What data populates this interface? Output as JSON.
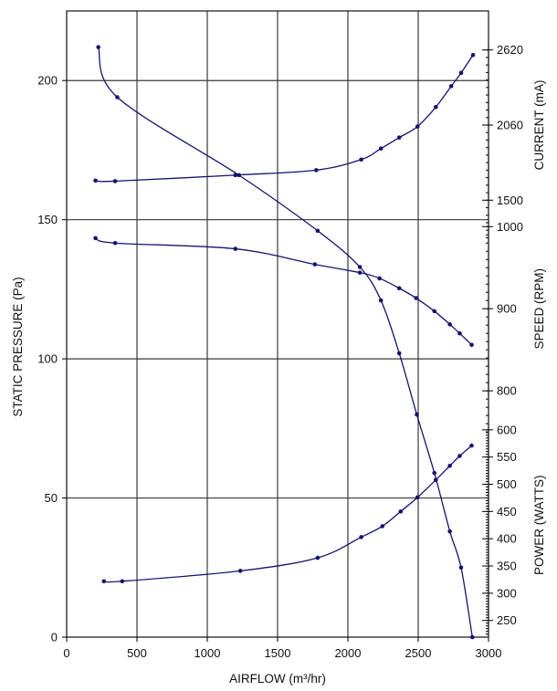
{
  "chart_data": {
    "type": "line",
    "xlabel": "AIRFLOW (m³/hr)",
    "ylabel": "STATIC PRESSURE (Pa)",
    "xlim": [
      0,
      3000
    ],
    "ylim": [
      0,
      225
    ],
    "x_ticks": [
      0,
      500,
      1000,
      1500,
      2000,
      2500,
      3000
    ],
    "y_ticks": [
      0,
      50,
      100,
      150,
      200
    ],
    "grid": true,
    "line_color": "#14146e",
    "right_axes": [
      {
        "key": "current",
        "label": "CURRENT (mA)",
        "ticks": [
          1500,
          2060,
          2620
        ],
        "range": [
          1500,
          2620
        ],
        "plot_y_range": [
          157,
          211
        ]
      },
      {
        "key": "speed",
        "label": "SPEED (RPM)",
        "ticks": [
          800,
          900,
          1000
        ],
        "range": [
          800,
          1000
        ],
        "plot_y_range": [
          88.5,
          147.5
        ]
      },
      {
        "key": "power",
        "label": "POWER (WATTS)",
        "ticks": [
          250,
          300,
          350,
          400,
          450,
          500,
          550,
          600
        ],
        "range": [
          250,
          600
        ],
        "plot_y_range": [
          6,
          74.5
        ]
      }
    ],
    "series": [
      {
        "key": "pressure",
        "axis": "left",
        "x": [
          225,
          360,
          1225,
          1785,
          2085,
          2235,
          2365,
          2490,
          2615,
          2725,
          2805,
          2885
        ],
        "values": [
          212,
          194,
          166,
          146,
          133,
          121,
          102,
          80,
          59,
          38,
          25,
          0
        ]
      },
      {
        "key": "current",
        "axis": "current",
        "x": [
          205,
          345,
          1200,
          1775,
          2095,
          2235,
          2365,
          2495,
          2625,
          2735,
          2805,
          2890
        ],
        "values": [
          1646,
          1642,
          1687,
          1724,
          1803,
          1885,
          1967,
          2049,
          2194,
          2350,
          2449,
          2582
        ]
      },
      {
        "key": "speed",
        "axis": "speed",
        "x": [
          205,
          345,
          1200,
          1765,
          2085,
          2225,
          2365,
          2485,
          2615,
          2725,
          2795,
          2880
        ],
        "values": [
          986,
          980,
          973,
          954,
          944,
          937,
          925,
          913,
          897,
          881,
          870,
          856
        ]
      },
      {
        "key": "power",
        "axis": "power",
        "x": [
          265,
          395,
          1235,
          1785,
          2095,
          2245,
          2375,
          2495,
          2625,
          2725,
          2795,
          2880
        ],
        "values": [
          322,
          322,
          341,
          365,
          403,
          423,
          450,
          476,
          508,
          534,
          552,
          571
        ]
      }
    ]
  }
}
